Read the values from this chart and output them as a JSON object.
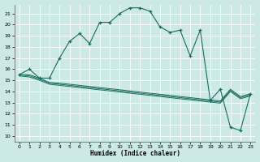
{
  "title": "",
  "xlabel": "Humidex (Indice chaleur)",
  "bg_color": "#cce9e5",
  "grid_color": "#b0d4cf",
  "line_color": "#1a6b5e",
  "xlim": [
    -0.5,
    23.5
  ],
  "ylim": [
    9.5,
    21.8
  ],
  "xticks": [
    0,
    1,
    2,
    3,
    4,
    5,
    6,
    7,
    8,
    9,
    10,
    11,
    12,
    13,
    14,
    15,
    16,
    17,
    18,
    19,
    20,
    21,
    22,
    23
  ],
  "yticks": [
    10,
    11,
    12,
    13,
    14,
    15,
    16,
    17,
    18,
    19,
    20,
    21
  ],
  "line1_x": [
    0,
    1,
    2,
    3,
    4,
    5,
    6,
    7,
    8,
    9,
    10,
    11,
    12,
    13,
    14,
    15,
    16,
    17,
    18,
    19,
    20,
    21,
    22,
    23
  ],
  "line1_y": [
    15.5,
    16.0,
    15.2,
    15.2,
    17.0,
    18.5,
    19.2,
    18.3,
    20.2,
    20.2,
    21.0,
    21.5,
    21.5,
    21.2,
    19.8,
    19.3,
    19.5,
    17.2,
    19.5,
    13.2,
    14.2,
    10.8,
    10.5,
    13.8
  ],
  "line2_x": [
    0,
    1,
    2,
    3,
    4,
    5,
    6,
    7,
    8,
    9,
    10,
    11,
    12,
    13,
    14,
    15,
    16,
    17,
    18,
    19,
    20,
    21,
    22,
    23
  ],
  "line2_y": [
    15.5,
    15.5,
    15.2,
    14.8,
    14.75,
    14.65,
    14.55,
    14.45,
    14.35,
    14.25,
    14.15,
    14.05,
    13.95,
    13.85,
    13.75,
    13.65,
    13.55,
    13.45,
    13.35,
    13.25,
    13.15,
    14.2,
    13.55,
    13.8
  ],
  "line3_x": [
    0,
    1,
    2,
    3,
    4,
    5,
    6,
    7,
    8,
    9,
    10,
    11,
    12,
    13,
    14,
    15,
    16,
    17,
    18,
    19,
    20,
    21,
    22,
    23
  ],
  "line3_y": [
    15.5,
    15.4,
    15.1,
    14.75,
    14.65,
    14.55,
    14.45,
    14.35,
    14.25,
    14.15,
    14.05,
    13.95,
    13.85,
    13.75,
    13.65,
    13.55,
    13.45,
    13.35,
    13.25,
    13.15,
    13.05,
    14.1,
    13.45,
    13.7
  ],
  "line4_x": [
    0,
    1,
    2,
    3,
    4,
    5,
    6,
    7,
    8,
    9,
    10,
    11,
    12,
    13,
    14,
    15,
    16,
    17,
    18,
    19,
    20,
    21,
    22,
    23
  ],
  "line4_y": [
    15.4,
    15.3,
    15.0,
    14.65,
    14.55,
    14.45,
    14.35,
    14.25,
    14.15,
    14.05,
    13.95,
    13.85,
    13.75,
    13.65,
    13.55,
    13.45,
    13.35,
    13.25,
    13.15,
    13.05,
    12.95,
    14.0,
    13.35,
    13.6
  ]
}
